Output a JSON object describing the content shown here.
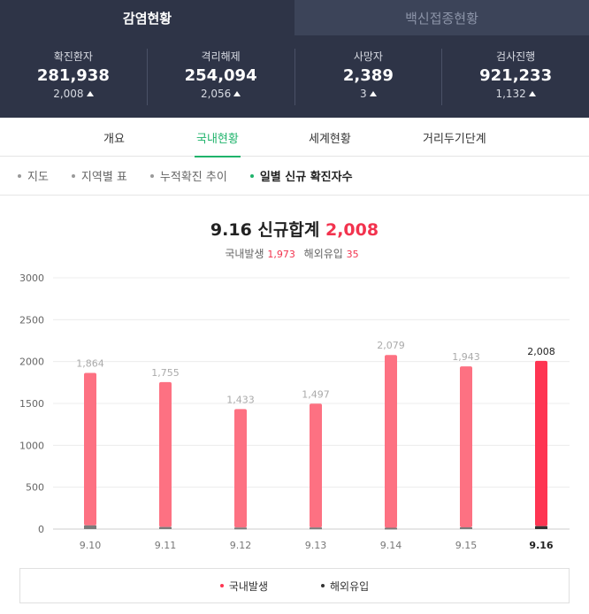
{
  "top_tabs": [
    {
      "label": "감염현황",
      "active": true
    },
    {
      "label": "백신접종현황",
      "active": false
    }
  ],
  "stats": [
    {
      "label": "확진환자",
      "value": "281,938",
      "delta": "2,008"
    },
    {
      "label": "격리해제",
      "value": "254,094",
      "delta": "2,056"
    },
    {
      "label": "사망자",
      "value": "2,389",
      "delta": "3"
    },
    {
      "label": "검사진행",
      "value": "921,233",
      "delta": "1,132"
    }
  ],
  "sub_tabs": [
    {
      "label": "개요",
      "active": false
    },
    {
      "label": "국내현황",
      "active": true
    },
    {
      "label": "세계현황",
      "active": false
    },
    {
      "label": "거리두기단계",
      "active": false
    }
  ],
  "filters": [
    {
      "label": "지도",
      "active": false
    },
    {
      "label": "지역별 표",
      "active": false
    },
    {
      "label": "누적확진 추이",
      "active": false
    },
    {
      "label": "일별 신규 확진자수",
      "active": true
    }
  ],
  "summary": {
    "title": "9.16 신규합계",
    "total": "2,008",
    "domestic_label": "국내발생",
    "domestic_value": "1,973",
    "overseas_label": "해외유입",
    "overseas_value": "35"
  },
  "colors": {
    "domestic": "#fd7182",
    "domestic_highlight": "#fe3552",
    "overseas": "#7a7a7a",
    "overseas_highlight": "#333333",
    "accent_green": "#1fb36b",
    "header_bg": "#2e3447"
  },
  "chart_data": {
    "type": "bar",
    "stacked": true,
    "categories": [
      "9.10",
      "9.11",
      "9.12",
      "9.13",
      "9.14",
      "9.15",
      "9.16"
    ],
    "totals": [
      1864,
      1755,
      1433,
      1497,
      2079,
      1943,
      2008
    ],
    "total_labels": [
      "1,864",
      "1,755",
      "1,433",
      "1,497",
      "2,079",
      "1,943",
      "2,008"
    ],
    "series": [
      {
        "name": "국내발생",
        "values": [
          1820,
          1730,
          1415,
          1478,
          2063,
          1922,
          1973
        ]
      },
      {
        "name": "해외유입",
        "values": [
          44,
          25,
          18,
          19,
          16,
          21,
          35
        ]
      }
    ],
    "ylim": [
      0,
      3000
    ],
    "yticks": [
      0,
      500,
      1000,
      1500,
      2000,
      2500,
      3000
    ],
    "grid": true,
    "highlight_index": 6,
    "legend_position": "bottom"
  }
}
